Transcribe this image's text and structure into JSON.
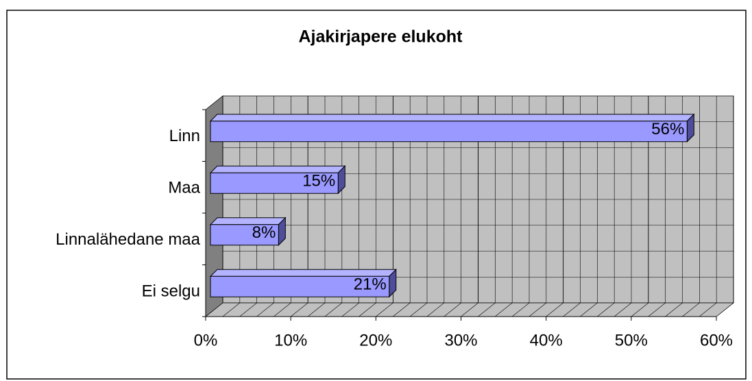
{
  "chart_data": {
    "type": "bar3d_horizontal",
    "title": "Ajakirjapere elukoht",
    "categories": [
      "Linn",
      "Maa",
      "Linnalähedane maa",
      "Ei selgu"
    ],
    "values": [
      56,
      15,
      8,
      21
    ],
    "value_labels": [
      "56%",
      "15%",
      "8%",
      "21%"
    ],
    "color": "#9999ff",
    "xlim": [
      0,
      60
    ],
    "xticks": [
      {
        "value": 0,
        "label": "0%"
      },
      {
        "value": 10,
        "label": "10%"
      },
      {
        "value": 20,
        "label": "20%"
      },
      {
        "value": 30,
        "label": "30%"
      },
      {
        "value": 40,
        "label": "40%"
      },
      {
        "value": 50,
        "label": "50%"
      },
      {
        "value": 60,
        "label": "60%"
      }
    ],
    "grid": true
  }
}
